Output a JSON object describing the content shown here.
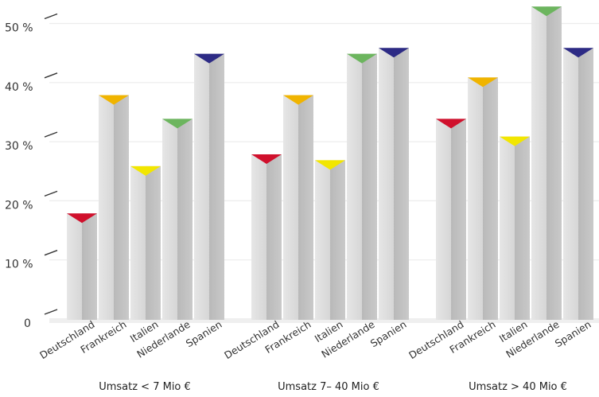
{
  "chart_data": {
    "type": "bar",
    "categories": [
      "Deutschland",
      "Frankreich",
      "Italien",
      "Niederlande",
      "Spanien"
    ],
    "groups": [
      {
        "label": "Umsatz < 7 Mio €",
        "values": [
          18,
          38,
          26,
          34,
          45
        ]
      },
      {
        "label": "Umsatz 7– 40 Mio €",
        "values": [
          28,
          38,
          27,
          45,
          46
        ]
      },
      {
        "label": "Umsatz > 40 Mio €",
        "values": [
          34,
          41,
          31,
          53,
          46
        ]
      }
    ],
    "category_colors": [
      "#d0102c",
      "#f0b400",
      "#f2e600",
      "#6cb55e",
      "#2d2b85"
    ],
    "yticks": [
      "0",
      "10 %",
      "20 %",
      "30 %",
      "40 %",
      "50 %"
    ],
    "ylim": [
      0,
      53
    ],
    "grid": true,
    "title": "",
    "xlabel": "",
    "ylabel": ""
  }
}
